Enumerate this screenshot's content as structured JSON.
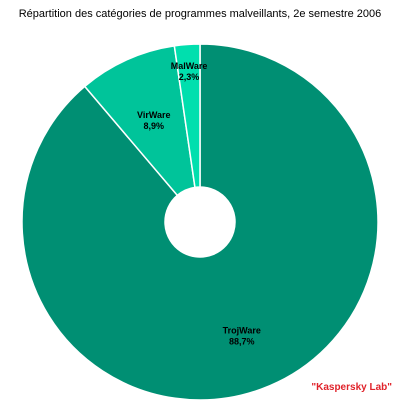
{
  "chart_data": {
    "type": "pie",
    "title": "Répartition des catégories de programmes malveillants, 2e semestre 2006",
    "slices": [
      {
        "name": "TrojWare",
        "label": "88,7%",
        "value": 88.7,
        "color": "#008f73"
      },
      {
        "name": "VirWare",
        "label": "8,9%",
        "value": 8.9,
        "color": "#00c49a"
      },
      {
        "name": "MalWare",
        "label": "2,3%",
        "value": 2.3,
        "color": "#00dfae"
      }
    ]
  },
  "watermark": {
    "text": "\"Kaspersky Lab\"",
    "color": "#e0222a"
  },
  "colors": {
    "slice_border": "#ffffff",
    "background": "#ffffff"
  }
}
